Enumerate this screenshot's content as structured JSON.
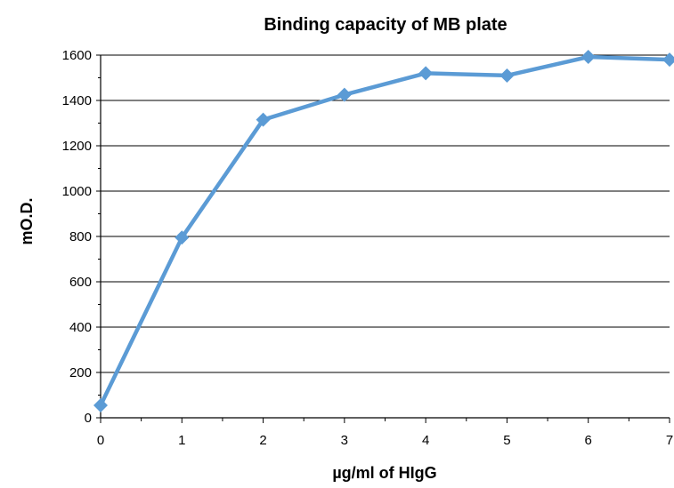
{
  "chart_data": {
    "type": "line",
    "title": "Binding capacity of MB plate",
    "xlabel": "µg/ml of HIgG",
    "ylabel": "mO.D.",
    "x": [
      0,
      1,
      2,
      3,
      4,
      5,
      6,
      7
    ],
    "series": [
      {
        "values": [
          55,
          795,
          1315,
          1425,
          1520,
          1510,
          1592,
          1580
        ]
      }
    ],
    "xlim": [
      0,
      7
    ],
    "ylim": [
      0,
      1600
    ],
    "x_ticks": [
      "0",
      "1",
      "2",
      "3",
      "4",
      "5",
      "6",
      "7"
    ],
    "y_ticks": [
      "0",
      "200",
      "400",
      "600",
      "800",
      "1000",
      "1200",
      "1400",
      "1600"
    ],
    "grid": "horizontal",
    "legend": "none",
    "colors": {
      "series": "#5b9bd5",
      "grid": "#000000"
    },
    "marker": "diamond"
  }
}
